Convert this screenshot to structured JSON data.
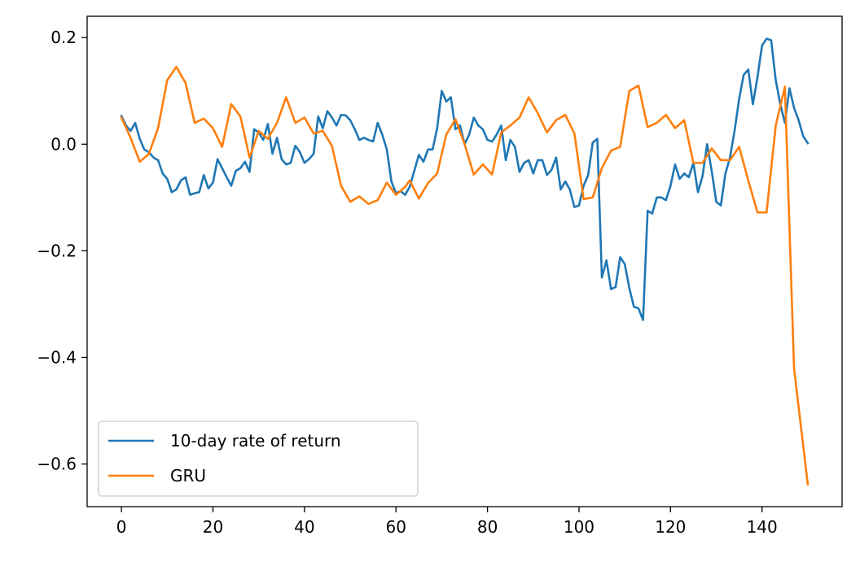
{
  "chart_data": {
    "type": "line",
    "title": "",
    "xlabel": "",
    "ylabel": "",
    "xlim": [
      -7.5,
      157.5
    ],
    "ylim": [
      -0.68,
      0.24
    ],
    "x_ticks": [
      0,
      20,
      40,
      60,
      80,
      100,
      120,
      140
    ],
    "y_ticks": [
      0.2,
      0.0,
      -0.2,
      -0.4,
      -0.6
    ],
    "x_tick_labels": [
      "0",
      "20",
      "40",
      "60",
      "80",
      "100",
      "120",
      "140"
    ],
    "y_tick_labels": [
      "0.2",
      "0.0",
      "−0.2",
      "−0.4",
      "−0.6"
    ],
    "grid": false,
    "legend_position": "lower-left",
    "series": [
      {
        "name": "10-day rate of return",
        "color": "#1f77b4",
        "points": [
          [
            0,
            0.053
          ],
          [
            1,
            0.035
          ],
          [
            2,
            0.025
          ],
          [
            3,
            0.04
          ],
          [
            4,
            0.01
          ],
          [
            5,
            -0.01
          ],
          [
            6,
            -0.015
          ],
          [
            7,
            -0.025
          ],
          [
            8,
            -0.03
          ],
          [
            9,
            -0.055
          ],
          [
            10,
            -0.065
          ],
          [
            11,
            -0.09
          ],
          [
            12,
            -0.085
          ],
          [
            13,
            -0.068
          ],
          [
            14,
            -0.062
          ],
          [
            15,
            -0.095
          ],
          [
            16,
            -0.092
          ],
          [
            17,
            -0.09
          ],
          [
            18,
            -0.058
          ],
          [
            19,
            -0.083
          ],
          [
            20,
            -0.072
          ],
          [
            21,
            -0.028
          ],
          [
            22,
            -0.045
          ],
          [
            23,
            -0.062
          ],
          [
            24,
            -0.078
          ],
          [
            25,
            -0.05
          ],
          [
            26,
            -0.045
          ],
          [
            27,
            -0.033
          ],
          [
            28,
            -0.052
          ],
          [
            29,
            0.028
          ],
          [
            30,
            0.022
          ],
          [
            31,
            0.008
          ],
          [
            32,
            0.038
          ],
          [
            33,
            -0.018
          ],
          [
            34,
            0.012
          ],
          [
            35,
            -0.028
          ],
          [
            36,
            -0.038
          ],
          [
            37,
            -0.035
          ],
          [
            38,
            -0.003
          ],
          [
            39,
            -0.015
          ],
          [
            40,
            -0.035
          ],
          [
            41,
            -0.028
          ],
          [
            42,
            -0.018
          ],
          [
            43,
            0.052
          ],
          [
            44,
            0.03
          ],
          [
            45,
            0.062
          ],
          [
            46,
            0.05
          ],
          [
            47,
            0.035
          ],
          [
            48,
            0.055
          ],
          [
            49,
            0.054
          ],
          [
            50,
            0.045
          ],
          [
            51,
            0.028
          ],
          [
            52,
            0.008
          ],
          [
            53,
            0.012
          ],
          [
            54,
            0.008
          ],
          [
            55,
            0.005
          ],
          [
            56,
            0.04
          ],
          [
            57,
            0.018
          ],
          [
            58,
            -0.01
          ],
          [
            59,
            -0.07
          ],
          [
            60,
            -0.092
          ],
          [
            61,
            -0.088
          ],
          [
            62,
            -0.095
          ],
          [
            63,
            -0.08
          ],
          [
            64,
            -0.05
          ],
          [
            65,
            -0.02
          ],
          [
            66,
            -0.033
          ],
          [
            67,
            -0.01
          ],
          [
            68,
            -0.01
          ],
          [
            69,
            0.03
          ],
          [
            70,
            0.1
          ],
          [
            71,
            0.08
          ],
          [
            72,
            0.088
          ],
          [
            73,
            0.028
          ],
          [
            74,
            0.035
          ],
          [
            75,
            0.0
          ],
          [
            76,
            0.018
          ],
          [
            77,
            0.05
          ],
          [
            78,
            0.035
          ],
          [
            79,
            0.028
          ],
          [
            80,
            0.008
          ],
          [
            81,
            0.005
          ],
          [
            82,
            0.018
          ],
          [
            83,
            0.035
          ],
          [
            84,
            -0.03
          ],
          [
            85,
            0.008
          ],
          [
            86,
            -0.005
          ],
          [
            87,
            -0.052
          ],
          [
            88,
            -0.035
          ],
          [
            89,
            -0.03
          ],
          [
            90,
            -0.055
          ],
          [
            91,
            -0.03
          ],
          [
            92,
            -0.03
          ],
          [
            93,
            -0.058
          ],
          [
            94,
            -0.048
          ],
          [
            95,
            -0.025
          ],
          [
            96,
            -0.085
          ],
          [
            97,
            -0.07
          ],
          [
            98,
            -0.085
          ],
          [
            99,
            -0.118
          ],
          [
            100,
            -0.115
          ],
          [
            101,
            -0.078
          ],
          [
            102,
            -0.058
          ],
          [
            103,
            0.003
          ],
          [
            104,
            0.01
          ],
          [
            105,
            -0.25
          ],
          [
            106,
            -0.218
          ],
          [
            107,
            -0.272
          ],
          [
            108,
            -0.268
          ],
          [
            109,
            -0.212
          ],
          [
            110,
            -0.225
          ],
          [
            111,
            -0.27
          ],
          [
            112,
            -0.305
          ],
          [
            113,
            -0.308
          ],
          [
            114,
            -0.33
          ],
          [
            115,
            -0.125
          ],
          [
            116,
            -0.13
          ],
          [
            117,
            -0.1
          ],
          [
            118,
            -0.1
          ],
          [
            119,
            -0.105
          ],
          [
            120,
            -0.078
          ],
          [
            121,
            -0.038
          ],
          [
            122,
            -0.065
          ],
          [
            123,
            -0.055
          ],
          [
            124,
            -0.062
          ],
          [
            125,
            -0.035
          ],
          [
            126,
            -0.09
          ],
          [
            127,
            -0.06
          ],
          [
            128,
            0.0
          ],
          [
            129,
            -0.05
          ],
          [
            130,
            -0.108
          ],
          [
            131,
            -0.115
          ],
          [
            132,
            -0.055
          ],
          [
            133,
            -0.025
          ],
          [
            134,
            0.025
          ],
          [
            135,
            0.085
          ],
          [
            136,
            0.13
          ],
          [
            137,
            0.14
          ],
          [
            138,
            0.075
          ],
          [
            139,
            0.125
          ],
          [
            140,
            0.185
          ],
          [
            141,
            0.198
          ],
          [
            142,
            0.195
          ],
          [
            143,
            0.12
          ],
          [
            144,
            0.075
          ],
          [
            145,
            0.04
          ],
          [
            146,
            0.105
          ],
          [
            147,
            0.068
          ],
          [
            148,
            0.045
          ],
          [
            149,
            0.015
          ],
          [
            150,
            0.002
          ]
        ]
      },
      {
        "name": "GRU",
        "color": "#ff7f0e",
        "points": [
          [
            0,
            0.05
          ],
          [
            2,
            0.012
          ],
          [
            4,
            -0.033
          ],
          [
            6,
            -0.018
          ],
          [
            8,
            0.03
          ],
          [
            10,
            0.12
          ],
          [
            12,
            0.145
          ],
          [
            14,
            0.115
          ],
          [
            16,
            0.04
          ],
          [
            18,
            0.048
          ],
          [
            20,
            0.03
          ],
          [
            22,
            -0.005
          ],
          [
            24,
            0.075
          ],
          [
            26,
            0.052
          ],
          [
            28,
            -0.025
          ],
          [
            30,
            0.025
          ],
          [
            32,
            0.01
          ],
          [
            34,
            0.04
          ],
          [
            36,
            0.088
          ],
          [
            38,
            0.04
          ],
          [
            40,
            0.05
          ],
          [
            42,
            0.02
          ],
          [
            44,
            0.025
          ],
          [
            46,
            -0.003
          ],
          [
            48,
            -0.078
          ],
          [
            50,
            -0.108
          ],
          [
            52,
            -0.098
          ],
          [
            54,
            -0.112
          ],
          [
            56,
            -0.105
          ],
          [
            58,
            -0.072
          ],
          [
            60,
            -0.095
          ],
          [
            62,
            -0.08
          ],
          [
            63,
            -0.068
          ],
          [
            65,
            -0.102
          ],
          [
            67,
            -0.073
          ],
          [
            69,
            -0.055
          ],
          [
            71,
            0.018
          ],
          [
            73,
            0.047
          ],
          [
            75,
            0.0
          ],
          [
            77,
            -0.057
          ],
          [
            79,
            -0.038
          ],
          [
            81,
            -0.057
          ],
          [
            83,
            0.022
          ],
          [
            85,
            0.035
          ],
          [
            87,
            0.05
          ],
          [
            89,
            0.088
          ],
          [
            91,
            0.058
          ],
          [
            93,
            0.022
          ],
          [
            95,
            0.045
          ],
          [
            97,
            0.055
          ],
          [
            99,
            0.02
          ],
          [
            101,
            -0.103
          ],
          [
            103,
            -0.1
          ],
          [
            105,
            -0.045
          ],
          [
            107,
            -0.012
          ],
          [
            109,
            -0.005
          ],
          [
            111,
            0.1
          ],
          [
            113,
            0.11
          ],
          [
            115,
            0.032
          ],
          [
            117,
            0.04
          ],
          [
            119,
            0.055
          ],
          [
            121,
            0.03
          ],
          [
            123,
            0.045
          ],
          [
            125,
            -0.035
          ],
          [
            127,
            -0.035
          ],
          [
            129,
            -0.008
          ],
          [
            131,
            -0.03
          ],
          [
            133,
            -0.03
          ],
          [
            135,
            -0.005
          ],
          [
            137,
            -0.068
          ],
          [
            139,
            -0.128
          ],
          [
            141,
            -0.128
          ],
          [
            143,
            0.035
          ],
          [
            145,
            0.108
          ],
          [
            147,
            -0.42
          ],
          [
            150,
            -0.638
          ]
        ]
      }
    ]
  }
}
